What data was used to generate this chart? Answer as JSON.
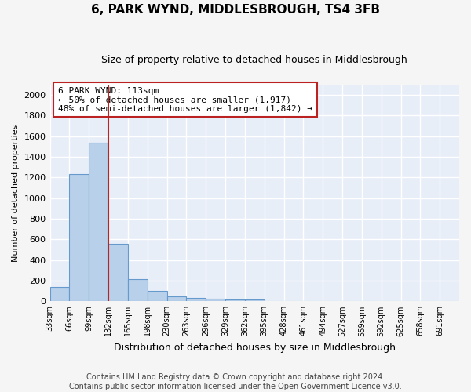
{
  "title": "6, PARK WYND, MIDDLESBROUGH, TS4 3FB",
  "subtitle": "Size of property relative to detached houses in Middlesbrough",
  "xlabel": "Distribution of detached houses by size in Middlesbrough",
  "ylabel": "Number of detached properties",
  "footer_line1": "Contains HM Land Registry data © Crown copyright and database right 2024.",
  "footer_line2": "Contains public sector information licensed under the Open Government Licence v3.0.",
  "bin_labels": [
    "33sqm",
    "66sqm",
    "99sqm",
    "132sqm",
    "165sqm",
    "198sqm",
    "230sqm",
    "263sqm",
    "296sqm",
    "329sqm",
    "362sqm",
    "395sqm",
    "428sqm",
    "461sqm",
    "494sqm",
    "527sqm",
    "559sqm",
    "592sqm",
    "625sqm",
    "658sqm",
    "691sqm"
  ],
  "bar_values": [
    140,
    1230,
    1540,
    560,
    215,
    100,
    50,
    30,
    25,
    20,
    20,
    0,
    0,
    0,
    0,
    0,
    0,
    0,
    0,
    0,
    0
  ],
  "bar_color": "#b8d0ea",
  "bar_edge_color": "#6699cc",
  "annotation_line_color": "#bb2222",
  "annotation_line_bin": 3,
  "annotation_box_text": "6 PARK WYND: 113sqm\n← 50% of detached houses are smaller (1,917)\n48% of semi-detached houses are larger (1,842) →",
  "ylim": [
    0,
    2100
  ],
  "yticks": [
    0,
    200,
    400,
    600,
    800,
    1000,
    1200,
    1400,
    1600,
    1800,
    2000
  ],
  "plot_bg_color": "#e8eef8",
  "fig_bg_color": "#f5f5f5",
  "grid_color": "#ffffff",
  "title_fontsize": 11,
  "subtitle_fontsize": 9,
  "ylabel_fontsize": 8,
  "xlabel_fontsize": 9,
  "footer_fontsize": 7
}
